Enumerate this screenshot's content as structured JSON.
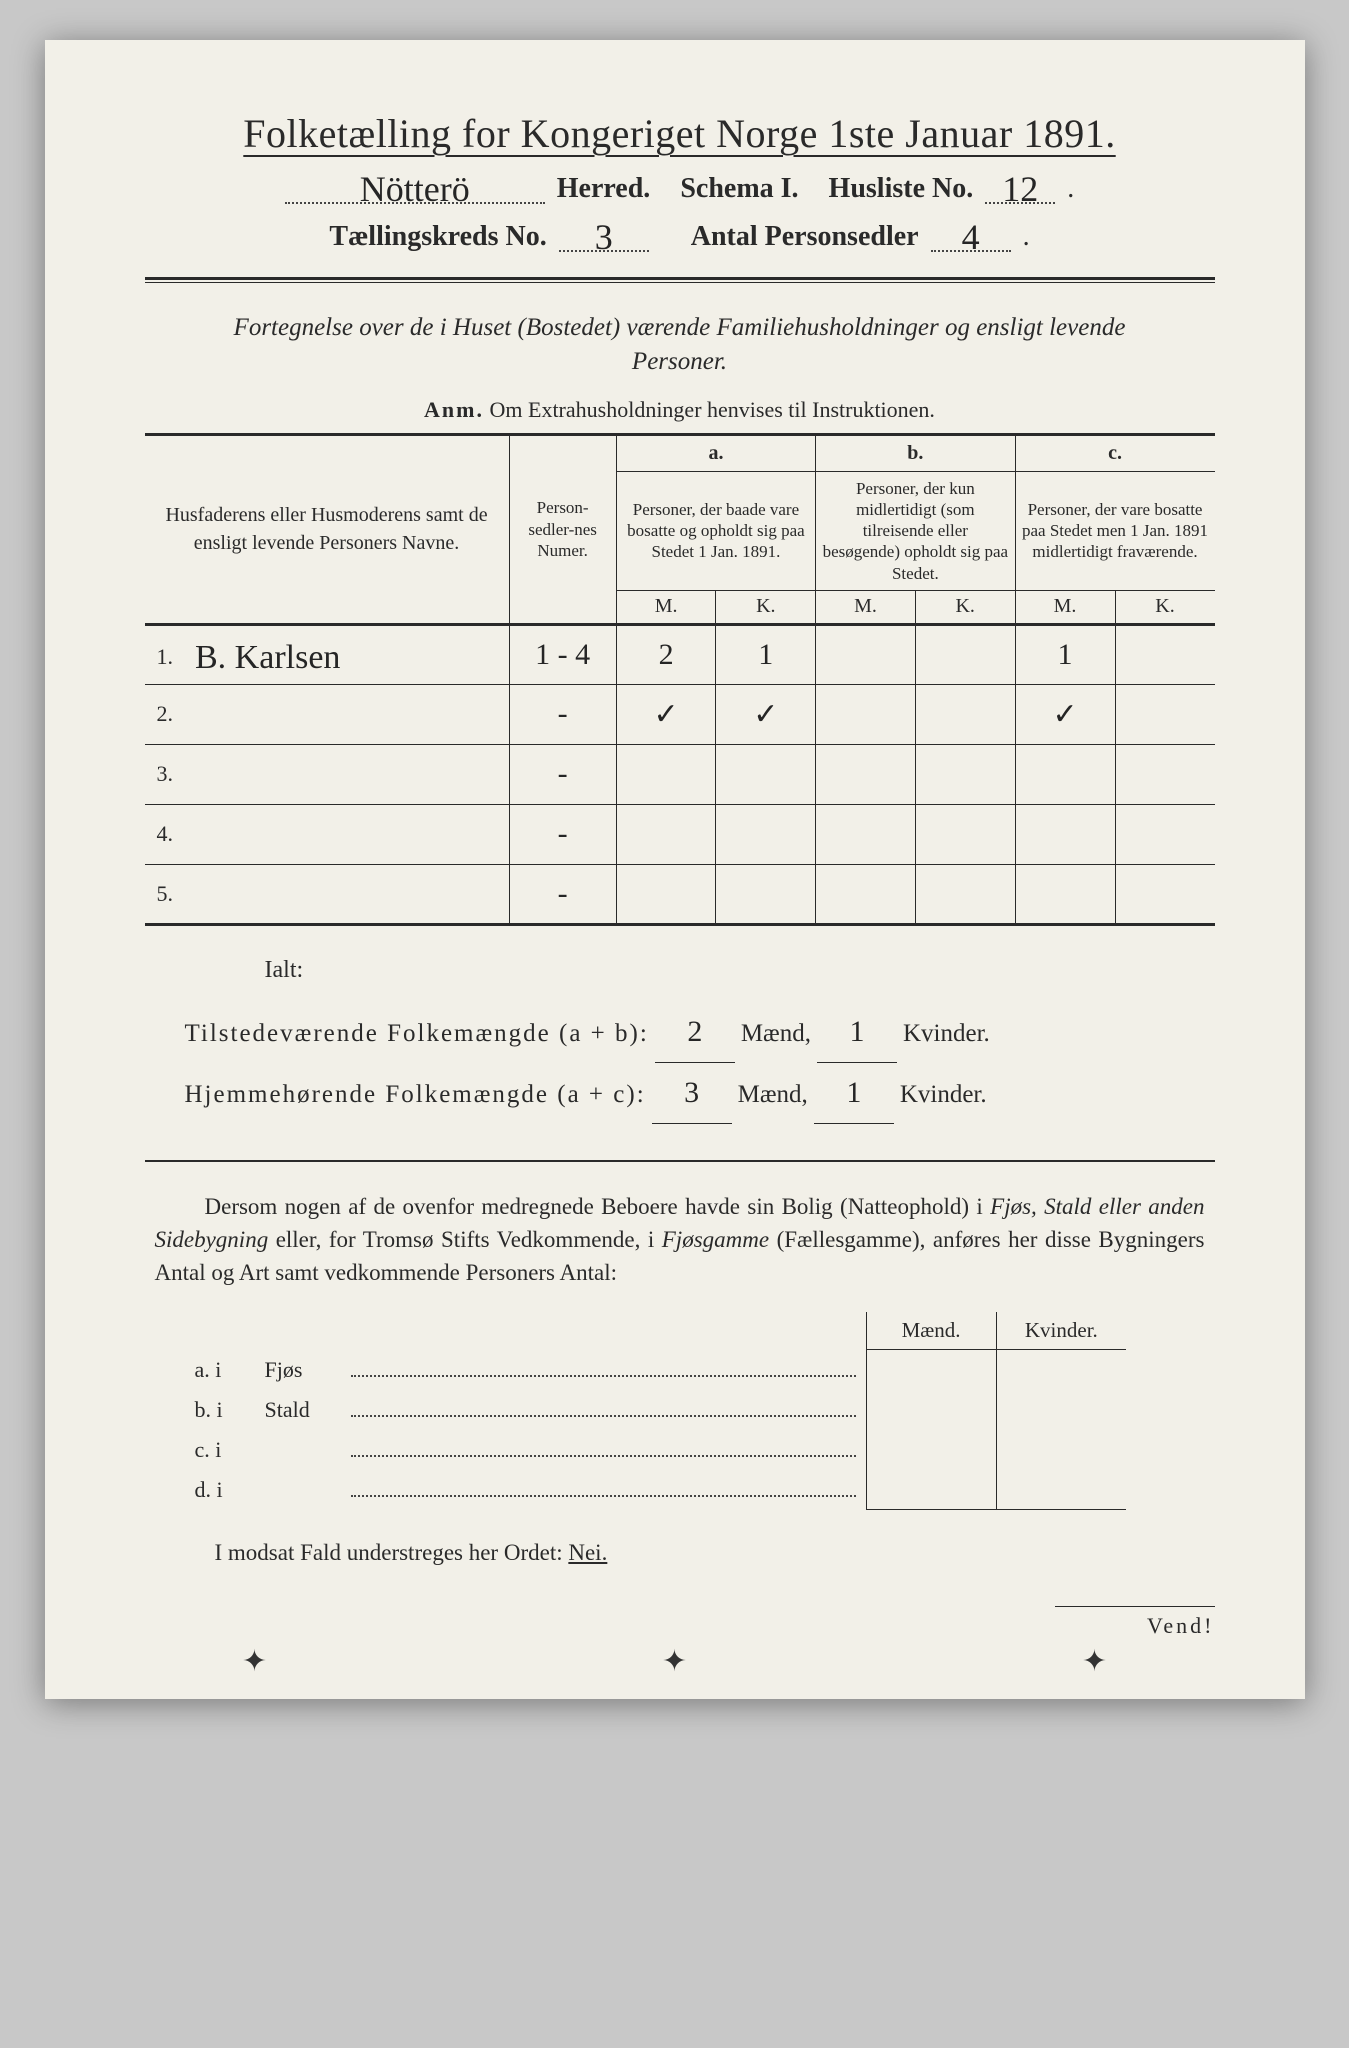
{
  "title": "Folketælling for Kongeriget Norge 1ste Januar 1891.",
  "header": {
    "herred_value": "Nötterö",
    "herred_label": "Herred.",
    "schema_label": "Schema I.",
    "husliste_label": "Husliste No.",
    "husliste_value": "12",
    "kreds_label": "Tællingskreds No.",
    "kreds_value": "3",
    "personsedler_label": "Antal Personsedler",
    "personsedler_value": "4"
  },
  "section_desc": "Fortegnelse over de i Huset (Bostedet) værende Familiehusholdninger og ensligt levende Personer.",
  "anm": {
    "label": "Anm.",
    "text": "Om Extrahusholdninger henvises til Instruktionen."
  },
  "table": {
    "col_name": "Husfaderens eller Husmoderens samt de ensligt levende Personers Navne.",
    "col_num": "Person-sedler-nes Numer.",
    "col_a_label": "a.",
    "col_a": "Personer, der baade vare bosatte og opholdt sig paa Stedet 1 Jan. 1891.",
    "col_b_label": "b.",
    "col_b": "Personer, der kun midlertidigt (som tilreisende eller besøgende) opholdt sig paa Stedet.",
    "col_c_label": "c.",
    "col_c": "Personer, der vare bosatte paa Stedet men 1 Jan. 1891 midlertidigt fraværende.",
    "m": "M.",
    "k": "K.",
    "rows": [
      {
        "n": "1.",
        "name": "B. Karlsen",
        "num": "1 - 4",
        "a_m": "2",
        "a_k": "1",
        "b_m": "",
        "b_k": "",
        "c_m": "1",
        "c_k": ""
      },
      {
        "n": "2.",
        "name": "",
        "num": "-",
        "a_m": "✓",
        "a_k": "✓",
        "b_m": "",
        "b_k": "",
        "c_m": "✓",
        "c_k": ""
      },
      {
        "n": "3.",
        "name": "",
        "num": "-",
        "a_m": "",
        "a_k": "",
        "b_m": "",
        "b_k": "",
        "c_m": "",
        "c_k": ""
      },
      {
        "n": "4.",
        "name": "",
        "num": "-",
        "a_m": "",
        "a_k": "",
        "b_m": "",
        "b_k": "",
        "c_m": "",
        "c_k": ""
      },
      {
        "n": "5.",
        "name": "",
        "num": "-",
        "a_m": "",
        "a_k": "",
        "b_m": "",
        "b_k": "",
        "c_m": "",
        "c_k": ""
      }
    ]
  },
  "totals": {
    "ialt": "Ialt:",
    "line1_label": "Tilstedeværende Folkemængde (a + b):",
    "line2_label": "Hjemmehørende Folkemængde (a + c):",
    "maend": "Mænd,",
    "kvinder": "Kvinder.",
    "l1_m": "2",
    "l1_k": "1",
    "l2_m": "3",
    "l2_k": "1"
  },
  "para1": {
    "t1": "Dersom nogen af de ovenfor medregnede Beboere havde sin Bolig (Natteophold) i ",
    "i1": "Fjøs, Stald eller anden Sidebygning",
    "t2": " eller, for Tromsø Stifts Vedkommende, i ",
    "i2": "Fjøsgamme",
    "t3": " (Fællesgamme), anføres her disse Bygningers Antal og Art samt vedkommende Personers Antal:"
  },
  "buildings": {
    "maend": "Mænd.",
    "kvinder": "Kvinder.",
    "rows": [
      {
        "k": "a.  i",
        "l": "Fjøs"
      },
      {
        "k": "b.  i",
        "l": "Stald"
      },
      {
        "k": "c.  i",
        "l": ""
      },
      {
        "k": "d.  i",
        "l": ""
      }
    ]
  },
  "nei_line": {
    "t1": "I modsat Fald understreges her Ordet: ",
    "nei": "Nei."
  },
  "vend": "Vend!"
}
